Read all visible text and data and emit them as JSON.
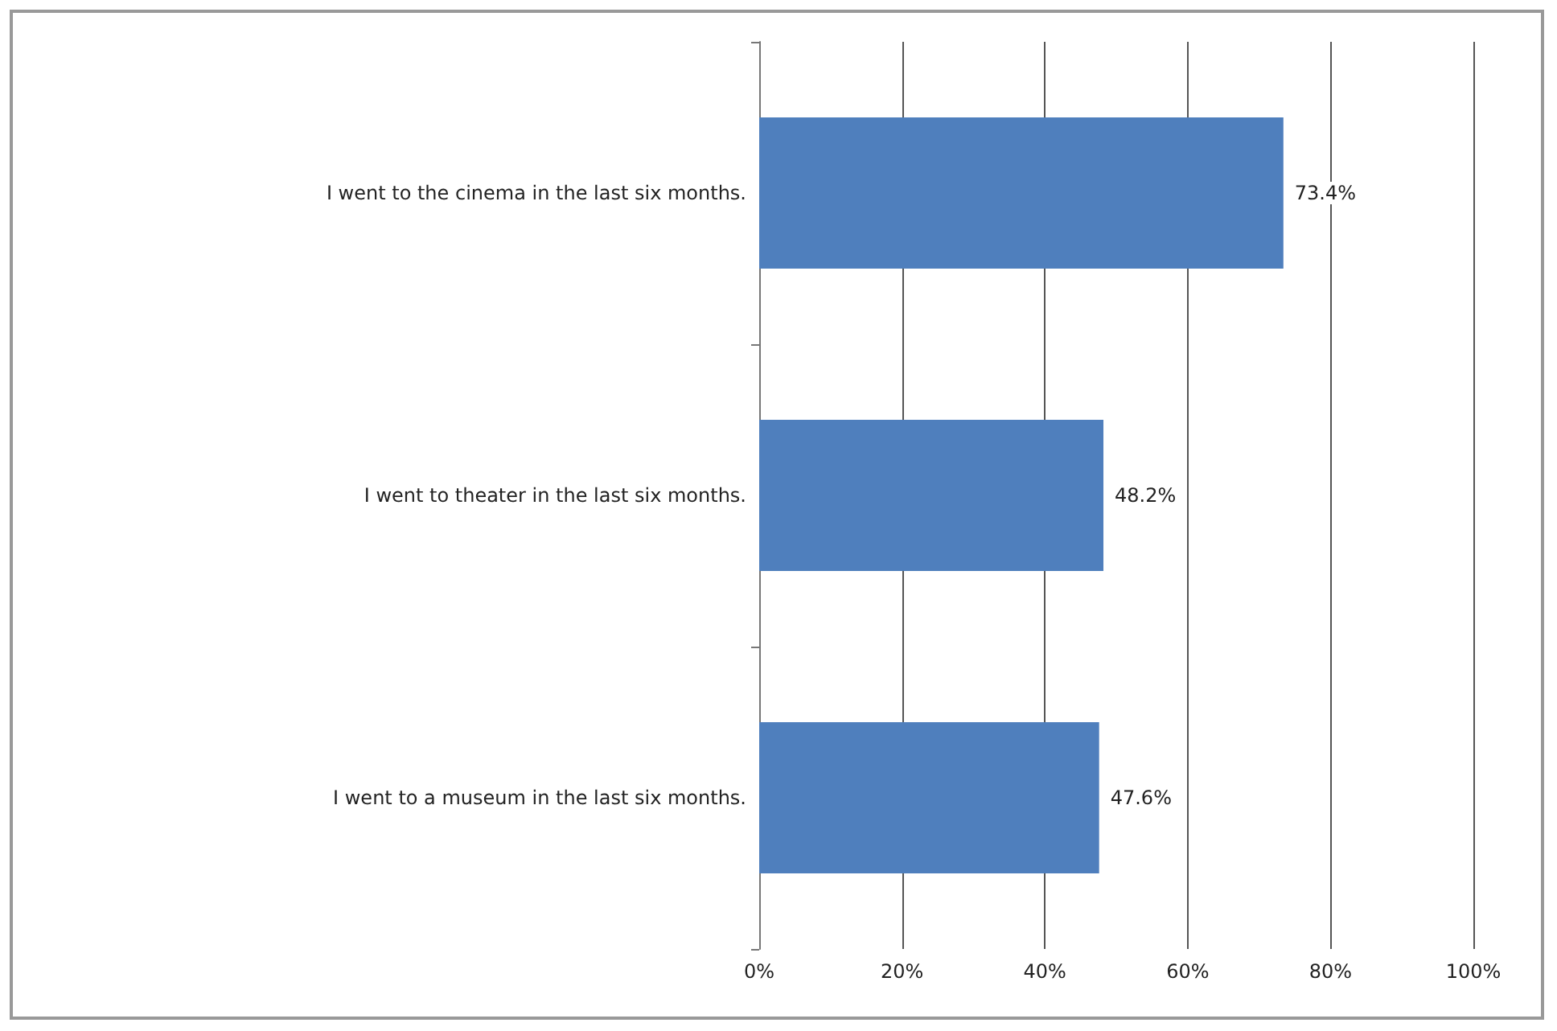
{
  "chart_data": {
    "type": "bar",
    "orientation": "horizontal",
    "categories": [
      "I went to the cinema in the last six months.",
      "I went to theater in the last six months.",
      "I went to a museum in the last six months."
    ],
    "values": [
      73.4,
      48.2,
      47.6
    ],
    "value_labels": [
      "73.4%",
      "48.2%",
      "47.6%"
    ],
    "color": "#4f7fbd",
    "xlim": [
      0,
      100
    ],
    "xticks": [
      {
        "value": 0,
        "label": "0%"
      },
      {
        "value": 20,
        "label": "20%"
      },
      {
        "value": 40,
        "label": "40%"
      },
      {
        "value": 60,
        "label": "60%"
      },
      {
        "value": 80,
        "label": "80%"
      },
      {
        "value": 100,
        "label": "100%"
      }
    ],
    "grid": "x"
  }
}
